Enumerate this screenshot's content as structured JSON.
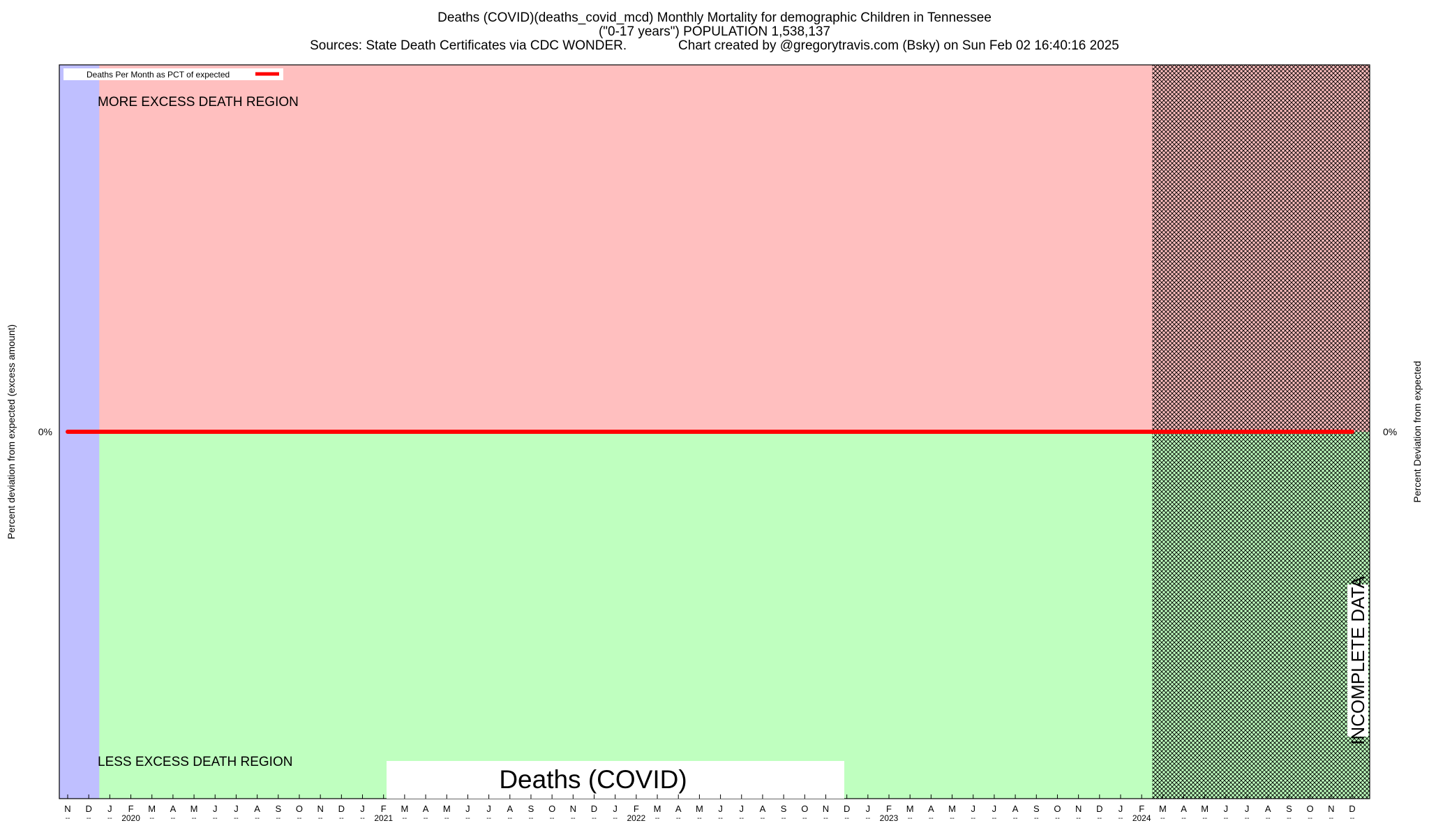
{
  "chart_data": {
    "type": "line",
    "title_lines": [
      "Deaths (COVID)(deaths_covid_mcd) Monthly Mortality for demographic Children in Tennessee",
      "(\"0-17 years\") POPULATION 1,538,137",
      "Sources: State Death Certificates via CDC WONDER.              Chart created by @gregorytravis.com (Bsky) on Sun Feb 02 16:40:16 2025"
    ],
    "ylabel_left": "Percent deviation from expected (excess amount)",
    "ylabel_right": "Percent Deviation from expected",
    "y_tick_left": "0%",
    "y_tick_right": "0%",
    "region_upper_label": "MORE EXCESS DEATH REGION",
    "region_lower_label": "LESS EXCESS DEATH REGION",
    "incomplete_label": "INCOMPLETE DATA",
    "center_label": "Deaths (COVID)",
    "legend": {
      "label": "Deaths Per Month as PCT of expected",
      "color": "#ff0000",
      "placement": "top-left"
    },
    "series": [
      {
        "name": "Deaths Per Month as PCT of expected",
        "color": "#ff0000",
        "constant_value": 0,
        "x_start_index": 0,
        "x_end_index": 61
      }
    ],
    "months": [
      "N",
      "D",
      "J",
      "F",
      "M",
      "A",
      "M",
      "J",
      "J",
      "A",
      "S",
      "O",
      "N",
      "D",
      "J",
      "F",
      "M",
      "A",
      "M",
      "J",
      "J",
      "A",
      "S",
      "O",
      "N",
      "D",
      "J",
      "F",
      "M",
      "A",
      "M",
      "J",
      "J",
      "A",
      "S",
      "O",
      "N",
      "D",
      "J",
      "F",
      "M",
      "A",
      "M",
      "J",
      "J",
      "A",
      "S",
      "O",
      "N",
      "D",
      "J",
      "F",
      "M",
      "A",
      "M",
      "J",
      "J",
      "A",
      "S",
      "O",
      "N",
      "D"
    ],
    "tick_sublabel": "--",
    "years": [
      {
        "label": "2020",
        "index": 3
      },
      {
        "label": "2021",
        "index": 15
      },
      {
        "label": "2022",
        "index": 27
      },
      {
        "label": "2023",
        "index": 39
      },
      {
        "label": "2024",
        "index": 51
      }
    ],
    "blue_region_end_index": 1.5,
    "incomplete_start_index": 51.5,
    "colors": {
      "upper": "#ffbfbf",
      "lower": "#bfffbf",
      "baseline_shade": "#bfbfff",
      "line": "#ff0000"
    }
  }
}
